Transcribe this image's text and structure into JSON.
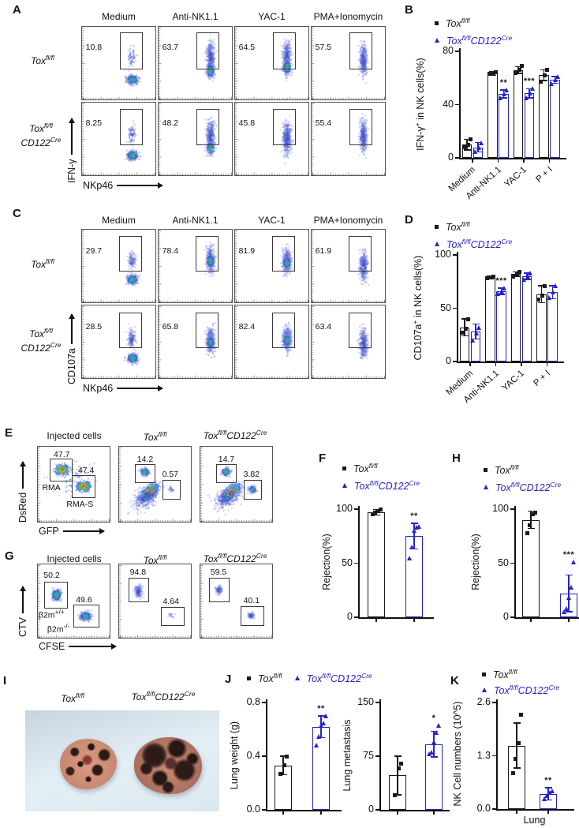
{
  "colors": {
    "black": "#1a1a1a",
    "blue": "#2424c8"
  },
  "genotype": {
    "wt_base": "Tox",
    "wt_sup": "fl/fl",
    "ko_base1": "Tox",
    "ko_sup1": "fl/fl",
    "ko_base2": "CD122",
    "ko_sup2": "Cre"
  },
  "panels": {
    "A": {
      "label": "A",
      "columns": [
        "Medium",
        "Anti-NK1.1",
        "YAC-1",
        "PMA+Ionomycin"
      ],
      "values": [
        [
          "10.8",
          "63.7",
          "64.5",
          "57.5"
        ],
        [
          "8.25",
          "48.2",
          "45.8",
          "55.4"
        ]
      ],
      "ylabel": "IFN-γ",
      "xlabel": "NKp46"
    },
    "B": {
      "label": "B"
    },
    "C": {
      "label": "C",
      "columns": [
        "Medium",
        "Anti-NK1.1",
        "YAC-1",
        "PMA+Ionomycin"
      ],
      "values": [
        [
          "29.7",
          "78.4",
          "81.9",
          "61.9"
        ],
        [
          "28.5",
          "65.8",
          "82.4",
          "63.4"
        ]
      ],
      "ylabel": "CD107a",
      "xlabel": "NKp46"
    },
    "D": {
      "label": "D"
    },
    "E": {
      "label": "E",
      "title_injected": "Injected cells",
      "gates": {
        "injected_top": "47.7",
        "injected_bottom": "47.4",
        "wt_top": "14.2",
        "wt_right": "0.57",
        "ko_top": "14.7",
        "ko_right": "3.82"
      },
      "pop_top": "RMA",
      "pop_bottom": "RMA-S",
      "ylabel": "DsRed",
      "xlabel": "GFP"
    },
    "F": {
      "label": "F"
    },
    "G": {
      "label": "G",
      "title_injected": "Injected cells",
      "gates": {
        "injected_top": "50.2",
        "injected_bottom": "49.6",
        "wt_top": "94.8",
        "wt_right": "4.64",
        "ko_top": "59.5",
        "ko_right": "40.1"
      },
      "b2m_base": "β2m",
      "b2m_sup_top": "+/+",
      "b2m_sup_bottom": "-/-",
      "ylabel": "CTV",
      "xlabel": "CFSE"
    },
    "H": {
      "label": "H"
    },
    "I": {
      "label": "I"
    },
    "J": {
      "label": "J"
    },
    "K": {
      "label": "K"
    }
  },
  "charts": {
    "B": {
      "type": "bar",
      "ylabel_pre": "IFN-γ",
      "ylabel_sup": "+",
      "ylabel_post": " in NK cells(%)",
      "ymax": 80,
      "yticks": [
        "0",
        "40",
        "80"
      ],
      "categories": [
        "Medium",
        "Anti-NK1.1",
        "YAC-1",
        "P + I"
      ],
      "series": [
        {
          "name": "Tox fl/fl",
          "values": [
            10,
            63.5,
            66,
            62
          ],
          "errors": [
            4,
            1.5,
            2.5,
            4
          ],
          "points": [
            [
              8,
              10,
              14
            ],
            [
              63,
              63.5,
              64.5
            ],
            [
              64,
              66,
              69
            ],
            [
              57,
              62,
              66
            ]
          ]
        },
        {
          "name": "Tox fl/fl CD122 Cre",
          "values": [
            8,
            48,
            48.5,
            58.5
          ],
          "errors": [
            3.5,
            3,
            3.5,
            2.5
          ],
          "points": [
            [
              5,
              8,
              11
            ],
            [
              45,
              48,
              51
            ],
            [
              45,
              48.5,
              52
            ],
            [
              56,
              58.5,
              61
            ]
          ]
        }
      ],
      "sig": [
        "",
        "**",
        "***",
        ""
      ]
    },
    "D": {
      "type": "bar",
      "ylabel_pre": "CD107a",
      "ylabel_sup": "+",
      "ylabel_post": " in NK cells(%)",
      "ymax": 100,
      "yticks": [
        "0",
        "50",
        "100"
      ],
      "categories": [
        "Medium",
        "Anti-NK1.1",
        "YAC-1",
        "P + I"
      ],
      "series": [
        {
          "name": "Tox fl/fl",
          "values": [
            32,
            79,
            82,
            63
          ],
          "errors": [
            8,
            1.5,
            2,
            8
          ],
          "points": [
            [
              27,
              31,
              40
            ],
            [
              78,
              79,
              80
            ],
            [
              80,
              82,
              84
            ],
            [
              58,
              62,
              71
            ]
          ]
        },
        {
          "name": "Tox fl/fl CD122 Cre",
          "values": [
            28,
            66,
            80,
            65
          ],
          "errors": [
            7,
            3,
            3,
            6
          ],
          "points": [
            [
              20,
              27,
              32
            ],
            [
              64,
              66,
              69
            ],
            [
              77,
              80,
              83
            ],
            [
              60,
              65,
              71
            ]
          ]
        }
      ],
      "sig": [
        "",
        "***",
        "",
        ""
      ]
    },
    "F": {
      "type": "bar",
      "ylabel": "Rejection(%)",
      "ymax": 100,
      "yticks": [
        "0",
        "50",
        "100"
      ],
      "categories": [
        ""
      ],
      "series": [
        {
          "name": "Tox fl/fl",
          "values": [
            97
          ],
          "errors": [
            2.5
          ],
          "points": [
            [
              95,
              97,
              98,
              100
            ]
          ]
        },
        {
          "name": "Tox fl/fl CD122 Cre",
          "values": [
            75
          ],
          "errors": [
            12
          ],
          "points": [
            [
              55,
              65,
              80,
              83,
              84
            ]
          ]
        }
      ],
      "sig": [
        "**"
      ]
    },
    "H": {
      "type": "bar",
      "ylabel": "Rejection(%)",
      "ymax": 100,
      "yticks": [
        "0",
        "50",
        "100"
      ],
      "categories": [
        ""
      ],
      "series": [
        {
          "name": "Tox fl/fl",
          "values": [
            90
          ],
          "errors": [
            8
          ],
          "points": [
            [
              78,
              85,
              95,
              97
            ]
          ]
        },
        {
          "name": "Tox fl/fl CD122 Cre",
          "values": [
            22
          ],
          "errors": [
            17
          ],
          "points": [
            [
              5,
              8,
              18,
              28,
              51
            ]
          ]
        }
      ],
      "sig": [
        "***"
      ]
    },
    "J0": {
      "type": "bar",
      "ylabel": "Lung weight (g)",
      "ymax": 0.8,
      "yticks": [
        "0.0",
        "0.4",
        "0.8"
      ],
      "categories": [
        ""
      ],
      "series": [
        {
          "name": "Tox fl/fl",
          "values": [
            0.33
          ],
          "errors": [
            0.07
          ],
          "points": [
            [
              0.27,
              0.33,
              0.4
            ]
          ]
        },
        {
          "name": "Tox fl/fl CD122 Cre",
          "values": [
            0.62
          ],
          "errors": [
            0.08
          ],
          "points": [
            [
              0.48,
              0.55,
              0.63,
              0.65,
              0.7
            ]
          ]
        }
      ],
      "sig": [
        "**"
      ]
    },
    "J1": {
      "type": "bar",
      "ylabel": "Lung metastasis",
      "ymax": 150,
      "yticks": [
        "0",
        "75",
        "150"
      ],
      "categories": [
        ""
      ],
      "series": [
        {
          "name": "Tox fl/fl",
          "values": [
            48
          ],
          "errors": [
            27
          ],
          "points": [
            [
              20,
              58,
              65
            ]
          ]
        },
        {
          "name": "Tox fl/fl CD122 Cre",
          "values": [
            92
          ],
          "errors": [
            18
          ],
          "points": [
            [
              78,
              80,
              95,
              108,
              118
            ]
          ]
        }
      ],
      "sig": [
        "*"
      ]
    },
    "K": {
      "type": "bar",
      "ylabel": "NK Cell numbers (10^5)",
      "xlabel": "Lung",
      "ymax": 2.6,
      "yticks": [
        "0.0",
        "1.3",
        "2.6"
      ],
      "categories": [
        ""
      ],
      "series": [
        {
          "name": "Tox fl/fl",
          "values": [
            1.55
          ],
          "errors": [
            0.55
          ],
          "points": [
            [
              0.87,
              1.22,
              1.6,
              2.3
            ]
          ]
        },
        {
          "name": "Tox fl/fl CD122 Cre",
          "values": [
            0.37
          ],
          "errors": [
            0.15
          ],
          "points": [
            [
              0.25,
              0.32,
              0.4,
              0.45
            ]
          ]
        }
      ],
      "sig": [
        "**"
      ]
    }
  }
}
